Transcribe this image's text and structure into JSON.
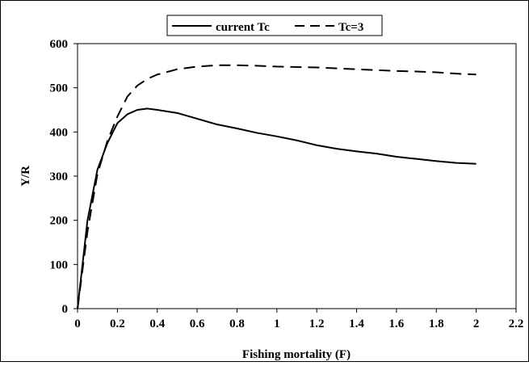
{
  "chart_data": {
    "type": "line",
    "title": "",
    "xlabel": "Fishing mortality (F)",
    "ylabel": "Y/R",
    "xlim": [
      0,
      2.2
    ],
    "ylim": [
      0,
      600
    ],
    "x_ticks": [
      "0",
      "0.2",
      "0.4",
      "0.6",
      "0.8",
      "1",
      "1.2",
      "1.4",
      "1.6",
      "1.8",
      "2",
      "2.2"
    ],
    "y_ticks": [
      "0",
      "100",
      "200",
      "300",
      "400",
      "500",
      "600"
    ],
    "grid": false,
    "legend_position": "top-center",
    "series": [
      {
        "name": "current Tc",
        "style": "solid",
        "color": "#000000",
        "x": [
          0,
          0.05,
          0.1,
          0.15,
          0.2,
          0.25,
          0.3,
          0.35,
          0.4,
          0.5,
          0.6,
          0.7,
          0.8,
          0.9,
          1.0,
          1.1,
          1.2,
          1.3,
          1.4,
          1.5,
          1.6,
          1.7,
          1.8,
          1.9,
          2.0
        ],
        "y": [
          0,
          200,
          315,
          375,
          420,
          440,
          450,
          453,
          450,
          443,
          430,
          417,
          408,
          398,
          390,
          381,
          370,
          362,
          356,
          351,
          344,
          339,
          334,
          330,
          328
        ]
      },
      {
        "name": "Tc=3",
        "style": "dashed",
        "color": "#000000",
        "x": [
          0,
          0.05,
          0.1,
          0.15,
          0.2,
          0.25,
          0.3,
          0.35,
          0.4,
          0.5,
          0.6,
          0.7,
          0.8,
          0.9,
          1.0,
          1.1,
          1.2,
          1.3,
          1.4,
          1.5,
          1.6,
          1.7,
          1.8,
          1.9,
          2.0
        ],
        "y": [
          0,
          175,
          305,
          380,
          435,
          480,
          505,
          520,
          530,
          542,
          548,
          551,
          551,
          550,
          548,
          547,
          546,
          544,
          542,
          540,
          538,
          537,
          535,
          532,
          530
        ]
      }
    ]
  }
}
